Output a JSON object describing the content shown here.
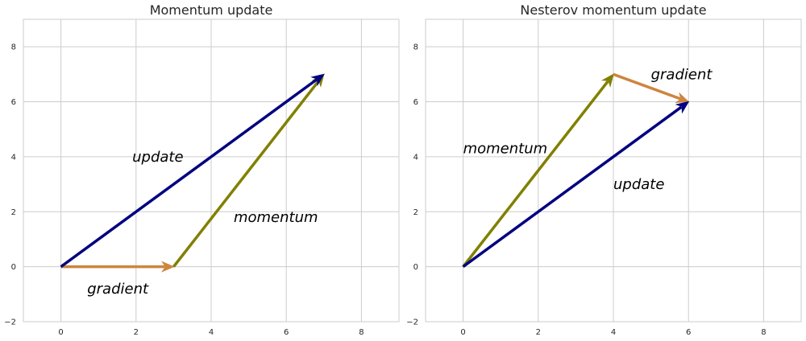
{
  "colors": {
    "update": "#000080",
    "momentum": "#808000",
    "gradient": "#cd853f",
    "grid": "#cccccc"
  },
  "chart_data": [
    {
      "type": "vector",
      "title": "Momentum update",
      "xlim": [
        -1,
        9
      ],
      "ylim": [
        -2,
        9
      ],
      "xticks": [
        0,
        2,
        4,
        6,
        8
      ],
      "yticks": [
        -2,
        0,
        2,
        4,
        6,
        8
      ],
      "grid": true,
      "vectors": [
        {
          "name": "gradient",
          "from": [
            0,
            0
          ],
          "to": [
            3,
            0
          ]
        },
        {
          "name": "momentum",
          "from": [
            3,
            0
          ],
          "to": [
            7,
            7
          ]
        },
        {
          "name": "update",
          "from": [
            0,
            0
          ],
          "to": [
            7,
            7
          ]
        }
      ],
      "annotations": [
        {
          "text": "update",
          "x": 1.9,
          "y": 4.0
        },
        {
          "text": "momentum",
          "x": 4.6,
          "y": 1.8
        },
        {
          "text": "gradient",
          "x": 0.7,
          "y": -0.8
        }
      ]
    },
    {
      "type": "vector",
      "title": "Nesterov momentum update",
      "xlim": [
        -1,
        9
      ],
      "ylim": [
        -2,
        9
      ],
      "xticks": [
        0,
        2,
        4,
        6,
        8
      ],
      "yticks": [
        -2,
        0,
        2,
        4,
        6,
        8
      ],
      "grid": true,
      "vectors": [
        {
          "name": "momentum",
          "from": [
            0,
            0
          ],
          "to": [
            4,
            7
          ]
        },
        {
          "name": "gradient",
          "from": [
            4,
            7
          ],
          "to": [
            6,
            6
          ]
        },
        {
          "name": "update",
          "from": [
            0,
            0
          ],
          "to": [
            6,
            6
          ]
        }
      ],
      "annotations": [
        {
          "text": "momentum",
          "x": 0.0,
          "y": 4.3
        },
        {
          "text": "gradient",
          "x": 5.0,
          "y": 7.0
        },
        {
          "text": "update",
          "x": 4.0,
          "y": 3.0
        }
      ]
    }
  ]
}
